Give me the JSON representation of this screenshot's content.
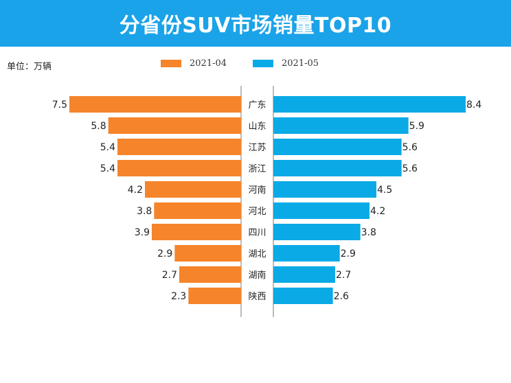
{
  "header": {
    "title": "分省份SUV市场销量TOP10"
  },
  "unit_label": "单位：万辆",
  "colors": {
    "header_bg": "#1aa3e8",
    "series_left": "#f5842a",
    "series_right": "#0aaae6"
  },
  "chart_data": {
    "type": "bar",
    "title": "分省份SUV市场销量TOP10",
    "orientation": "horizontal-butterfly",
    "categories": [
      "广东",
      "山东",
      "江苏",
      "浙江",
      "河南",
      "河北",
      "四川",
      "湖北",
      "湖南",
      "陕西"
    ],
    "series": [
      {
        "name": "2021-04",
        "values": [
          7.5,
          5.8,
          5.4,
          5.4,
          4.2,
          3.8,
          3.9,
          2.9,
          2.7,
          2.3
        ]
      },
      {
        "name": "2021-05",
        "values": [
          8.4,
          5.9,
          5.6,
          5.6,
          4.5,
          4.2,
          3.8,
          2.9,
          2.7,
          2.6
        ]
      }
    ],
    "unit": "万辆",
    "xlim": [
      0,
      8.4
    ],
    "legend": "top-center",
    "grid": false
  }
}
